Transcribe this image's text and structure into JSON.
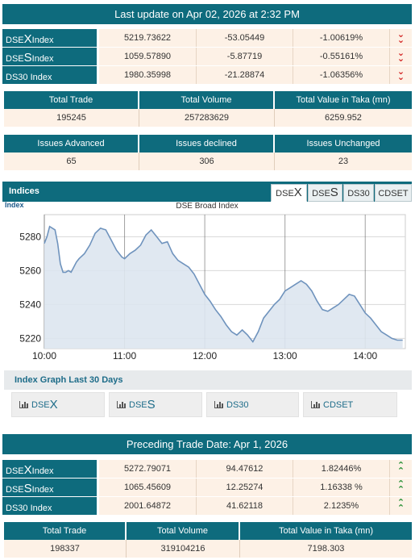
{
  "last_update": {
    "title": "Last update on Apr 02, 2026 at 2:32 PM"
  },
  "current_indices": [
    {
      "prefix": "DSE",
      "big": "X",
      "suffix": " Index",
      "value": "5219.73622",
      "change": "-53.05449",
      "percent": "-1.00619%",
      "trend": "down"
    },
    {
      "prefix": "DSE",
      "big": "S",
      "suffix": " Index",
      "value": "1059.57890",
      "change": "-5.87719",
      "percent": "-0.55161%",
      "trend": "down"
    },
    {
      "prefix": "DS30 Index",
      "big": "",
      "suffix": "",
      "value": "1980.35998",
      "change": "-21.28874",
      "percent": "-1.06356%",
      "trend": "down"
    }
  ],
  "trade_summary": {
    "headers": [
      "Total Trade",
      "Total Volume",
      "Total Value in Taka (mn)"
    ],
    "values": [
      "195245",
      "257283629",
      "6259.952"
    ]
  },
  "issues": {
    "headers": [
      "Issues Advanced",
      "Issues declined",
      "Issues Unchanged"
    ],
    "values": [
      "65",
      "306",
      "23"
    ]
  },
  "indices_panel": {
    "title": "Indices",
    "tabs": [
      {
        "prefix": "DSE",
        "big": "X",
        "active": true
      },
      {
        "prefix": "DSE",
        "big": "S",
        "active": false
      },
      {
        "prefix": "DS30",
        "big": "",
        "active": false
      },
      {
        "prefix": "CDSET",
        "big": "",
        "active": false
      }
    ]
  },
  "chart_data": {
    "type": "area",
    "title": "DSE Broad Index",
    "ylabel": "Index",
    "xlabel": "",
    "yticks": [
      5220,
      5240,
      5260,
      5280
    ],
    "xticks": [
      "10:00",
      "11:00",
      "12:00",
      "13:00",
      "14:00"
    ],
    "ylim": [
      5214,
      5293
    ],
    "xlim": [
      "10:00",
      "14:30"
    ],
    "grid": true,
    "x": [
      "10:00",
      "10:02",
      "10:04",
      "10:06",
      "10:08",
      "10:10",
      "10:12",
      "10:14",
      "10:16",
      "10:18",
      "10:20",
      "10:22",
      "10:24",
      "10:26",
      "10:30",
      "10:34",
      "10:38",
      "10:42",
      "10:46",
      "10:50",
      "10:54",
      "10:58",
      "11:00",
      "11:04",
      "11:08",
      "11:12",
      "11:16",
      "11:20",
      "11:24",
      "11:28",
      "11:32",
      "11:36",
      "11:40",
      "11:44",
      "11:48",
      "11:52",
      "11:56",
      "12:00",
      "12:04",
      "12:08",
      "12:12",
      "12:16",
      "12:20",
      "12:24",
      "12:28",
      "12:32",
      "12:36",
      "12:40",
      "12:44",
      "12:48",
      "12:52",
      "12:56",
      "13:00",
      "13:04",
      "13:08",
      "13:12",
      "13:16",
      "13:20",
      "13:24",
      "13:28",
      "13:32",
      "13:36",
      "13:40",
      "13:44",
      "13:48",
      "13:52",
      "13:56",
      "14:00",
      "14:04",
      "14:08",
      "14:12",
      "14:16",
      "14:20",
      "14:24",
      "14:28"
    ],
    "values": [
      5276,
      5280,
      5286,
      5285,
      5284,
      5276,
      5264,
      5259,
      5259,
      5260,
      5259,
      5262,
      5265,
      5267,
      5270,
      5275,
      5282,
      5285,
      5284,
      5278,
      5272,
      5268,
      5267,
      5270,
      5272,
      5275,
      5281,
      5284,
      5280,
      5276,
      5277,
      5270,
      5266,
      5264,
      5262,
      5258,
      5252,
      5246,
      5242,
      5237,
      5233,
      5228,
      5224,
      5222,
      5225,
      5222,
      5218,
      5224,
      5232,
      5236,
      5240,
      5243,
      5248,
      5250,
      5252,
      5254,
      5252,
      5248,
      5242,
      5237,
      5236,
      5238,
      5240,
      5243,
      5246,
      5245,
      5240,
      5235,
      5232,
      5228,
      5224,
      5222,
      5220,
      5219,
      5219
    ]
  },
  "last_30_days": {
    "title": "Index Graph Last 30 Days",
    "buttons": [
      {
        "prefix": "DSE",
        "big": "X"
      },
      {
        "prefix": "DSE",
        "big": "S"
      },
      {
        "prefix": "DS30",
        "big": ""
      },
      {
        "prefix": "CDSET",
        "big": ""
      }
    ]
  },
  "preceding": {
    "title": "Preceding Trade Date: Apr 1, 2026",
    "indices": [
      {
        "prefix": "DSE",
        "big": "X",
        "suffix": " Index",
        "value": "5272.79071",
        "change": "94.47612",
        "percent": "1.82446%",
        "trend": "up"
      },
      {
        "prefix": "DSE",
        "big": "S",
        "suffix": " Index",
        "value": "1065.45609",
        "change": "12.25274",
        "percent": "1.16338 %",
        "trend": "up"
      },
      {
        "prefix": "DS30 Index",
        "big": "",
        "suffix": "",
        "value": "2001.64872",
        "change": "41.62118",
        "percent": "2.1235%",
        "trend": "up"
      }
    ],
    "trade_summary": {
      "headers": [
        "Total Trade",
        "Total Volume",
        "Total Value in Taka (mn)"
      ],
      "values": [
        "198337",
        "319104216",
        "7198.303"
      ]
    }
  },
  "colors": {
    "header": "#0e6b7d",
    "cell": "#fdf1e6",
    "down": "#d01818",
    "up": "#1a8a2a",
    "chart_line": "#6f93bd",
    "chart_fill": "#dde6f0"
  }
}
